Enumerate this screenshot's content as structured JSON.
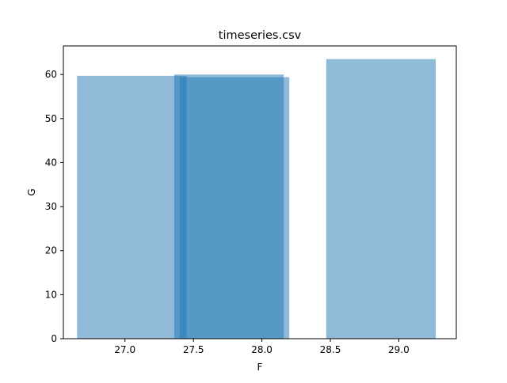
{
  "chart_data": {
    "type": "bar",
    "title": "timeseries.csv",
    "xlabel": "F",
    "ylabel": "G",
    "xlim": [
      26.55,
      29.42
    ],
    "ylim": [
      0,
      66.5
    ],
    "bar_color": "#1f77b4",
    "bar_alpha": 0.5,
    "x_ticks": [
      "27.0",
      "27.5",
      "28.0",
      "28.5",
      "29.0"
    ],
    "y_ticks": [
      "0",
      "10",
      "20",
      "30",
      "40",
      "50",
      "60"
    ],
    "bars": [
      {
        "x": 27.05,
        "width": 0.8,
        "value": 59.7
      },
      {
        "x": 27.8,
        "width": 0.8,
        "value": 59.4
      },
      {
        "x": 27.76,
        "width": 0.8,
        "value": 60.0
      },
      {
        "x": 28.87,
        "width": 0.8,
        "value": 63.5
      }
    ],
    "grid": false,
    "legend": "none"
  }
}
